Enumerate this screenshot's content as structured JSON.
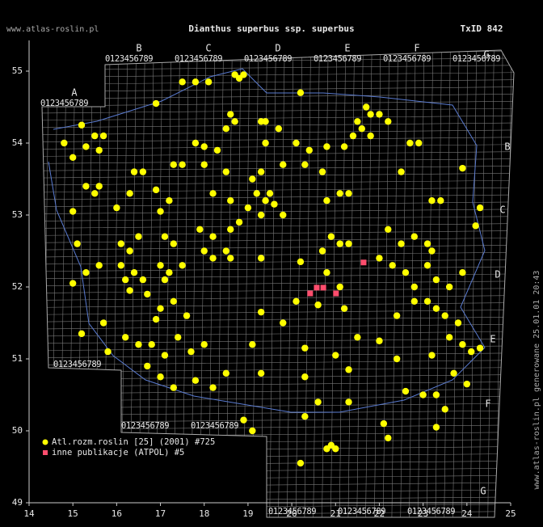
{
  "header": {
    "site": "www.atlas-roslin.pl",
    "title": "Dianthus superbus ssp. superbus",
    "taxon_id": "TxID 842"
  },
  "map": {
    "lonlim": [
      14,
      25
    ],
    "latlim": [
      49,
      55
    ],
    "lon_ticks": [
      14,
      15,
      16,
      17,
      18,
      19,
      20,
      21,
      22,
      23,
      24,
      25
    ],
    "lat_ticks": [
      49,
      50,
      51,
      52,
      53,
      54,
      55
    ],
    "atpol_top": [
      "A",
      "B",
      "C",
      "D",
      "E",
      "F",
      "G"
    ],
    "atpol_right": [
      "B",
      "C",
      "D",
      "E",
      "F",
      "G"
    ],
    "atpol_digits": "0123456789",
    "series": [
      {
        "name": "Atl.rozm.roslin [25] (2001) #725",
        "color": "#ffff00",
        "points": [
          [
            18.7,
            54.95
          ],
          [
            18.9,
            54.95
          ],
          [
            18.8,
            54.9
          ],
          [
            17.5,
            54.85
          ],
          [
            17.8,
            54.85
          ],
          [
            18.1,
            54.85
          ],
          [
            20.2,
            54.7
          ],
          [
            16.9,
            54.55
          ],
          [
            18.6,
            54.4
          ],
          [
            18.7,
            54.3
          ],
          [
            18.5,
            54.2
          ],
          [
            19.3,
            54.3
          ],
          [
            19.4,
            54.3
          ],
          [
            19.7,
            54.2
          ],
          [
            21.7,
            54.5
          ],
          [
            21.8,
            54.4
          ],
          [
            22.0,
            54.4
          ],
          [
            21.5,
            54.3
          ],
          [
            21.6,
            54.2
          ],
          [
            21.8,
            54.1
          ],
          [
            21.4,
            54.1
          ],
          [
            22.2,
            54.3
          ],
          [
            15.2,
            54.25
          ],
          [
            14.8,
            54.0
          ],
          [
            15.3,
            53.95
          ],
          [
            15.5,
            54.1
          ],
          [
            15.7,
            54.1
          ],
          [
            17.8,
            54.0
          ],
          [
            18.0,
            53.95
          ],
          [
            18.3,
            53.9
          ],
          [
            19.4,
            54.0
          ],
          [
            20.1,
            54.0
          ],
          [
            20.4,
            53.9
          ],
          [
            20.8,
            53.95
          ],
          [
            22.7,
            54.0
          ],
          [
            22.9,
            54.0
          ],
          [
            21.2,
            53.95
          ],
          [
            15.0,
            53.8
          ],
          [
            15.6,
            53.9
          ],
          [
            16.4,
            53.6
          ],
          [
            16.6,
            53.6
          ],
          [
            17.3,
            53.7
          ],
          [
            17.5,
            53.7
          ],
          [
            18.0,
            53.7
          ],
          [
            18.5,
            53.6
          ],
          [
            19.1,
            53.5
          ],
          [
            19.3,
            53.6
          ],
          [
            19.8,
            53.7
          ],
          [
            20.3,
            53.7
          ],
          [
            20.7,
            53.6
          ],
          [
            22.5,
            53.6
          ],
          [
            23.9,
            53.65
          ],
          [
            15.3,
            53.4
          ],
          [
            15.5,
            53.3
          ],
          [
            15.6,
            53.4
          ],
          [
            16.3,
            53.3
          ],
          [
            16.9,
            53.35
          ],
          [
            17.2,
            53.2
          ],
          [
            18.2,
            53.3
          ],
          [
            18.6,
            53.2
          ],
          [
            19.2,
            53.3
          ],
          [
            19.4,
            53.2
          ],
          [
            19.6,
            53.15
          ],
          [
            19.8,
            53.0
          ],
          [
            19.3,
            53.0
          ],
          [
            20.8,
            53.2
          ],
          [
            21.1,
            53.3
          ],
          [
            21.3,
            53.3
          ],
          [
            23.2,
            53.2
          ],
          [
            23.4,
            53.2
          ],
          [
            24.3,
            53.1
          ],
          [
            15.0,
            53.05
          ],
          [
            16.0,
            53.1
          ],
          [
            17.0,
            53.05
          ],
          [
            19.0,
            53.1
          ],
          [
            19.5,
            53.3
          ],
          [
            15.1,
            52.6
          ],
          [
            16.1,
            52.6
          ],
          [
            16.3,
            52.5
          ],
          [
            16.5,
            52.7
          ],
          [
            17.1,
            52.7
          ],
          [
            17.3,
            52.6
          ],
          [
            17.9,
            52.8
          ],
          [
            18.2,
            52.7
          ],
          [
            18.6,
            52.8
          ],
          [
            18.8,
            52.9
          ],
          [
            18.0,
            52.5
          ],
          [
            18.5,
            52.5
          ],
          [
            20.9,
            52.7
          ],
          [
            21.1,
            52.6
          ],
          [
            21.3,
            52.6
          ],
          [
            20.7,
            52.5
          ],
          [
            22.2,
            52.8
          ],
          [
            22.5,
            52.6
          ],
          [
            22.8,
            52.7
          ],
          [
            23.1,
            52.6
          ],
          [
            23.2,
            52.5
          ],
          [
            24.2,
            52.85
          ],
          [
            15.0,
            52.05
          ],
          [
            15.3,
            52.2
          ],
          [
            15.6,
            52.3
          ],
          [
            16.1,
            52.3
          ],
          [
            16.2,
            52.1
          ],
          [
            16.4,
            52.2
          ],
          [
            16.6,
            52.1
          ],
          [
            17.0,
            52.3
          ],
          [
            17.2,
            52.2
          ],
          [
            17.5,
            52.3
          ],
          [
            17.1,
            52.1
          ],
          [
            18.2,
            52.4
          ],
          [
            18.6,
            52.4
          ],
          [
            19.3,
            52.4
          ],
          [
            20.2,
            52.35
          ],
          [
            20.8,
            52.2
          ],
          [
            22.0,
            52.4
          ],
          [
            22.3,
            52.3
          ],
          [
            22.6,
            52.2
          ],
          [
            22.8,
            52.0
          ],
          [
            23.1,
            52.3
          ],
          [
            23.3,
            52.1
          ],
          [
            23.6,
            52.0
          ],
          [
            23.9,
            52.2
          ],
          [
            21.1,
            52.0
          ],
          [
            16.3,
            51.95
          ],
          [
            16.7,
            51.9
          ],
          [
            17.0,
            51.7
          ],
          [
            17.3,
            51.8
          ],
          [
            16.9,
            51.55
          ],
          [
            17.6,
            51.6
          ],
          [
            20.1,
            51.8
          ],
          [
            20.6,
            51.75
          ],
          [
            21.2,
            51.7
          ],
          [
            22.4,
            51.6
          ],
          [
            22.8,
            51.8
          ],
          [
            23.1,
            51.8
          ],
          [
            23.3,
            51.7
          ],
          [
            23.5,
            51.6
          ],
          [
            23.8,
            51.5
          ],
          [
            19.3,
            51.65
          ],
          [
            19.8,
            51.5
          ],
          [
            15.7,
            51.5
          ],
          [
            15.2,
            51.35
          ],
          [
            15.8,
            51.1
          ],
          [
            16.2,
            51.3
          ],
          [
            16.5,
            51.2
          ],
          [
            16.8,
            51.2
          ],
          [
            17.1,
            51.05
          ],
          [
            17.4,
            51.3
          ],
          [
            17.7,
            51.1
          ],
          [
            18.0,
            51.2
          ],
          [
            19.1,
            51.2
          ],
          [
            20.3,
            51.15
          ],
          [
            21.0,
            51.05
          ],
          [
            21.5,
            51.3
          ],
          [
            22.0,
            51.25
          ],
          [
            23.2,
            51.05
          ],
          [
            23.6,
            51.3
          ],
          [
            23.9,
            51.2
          ],
          [
            24.1,
            51.1
          ],
          [
            24.3,
            51.15
          ],
          [
            22.4,
            51.0
          ],
          [
            16.7,
            50.9
          ],
          [
            17.0,
            50.75
          ],
          [
            17.3,
            50.6
          ],
          [
            17.8,
            50.7
          ],
          [
            18.2,
            50.6
          ],
          [
            18.5,
            50.8
          ],
          [
            19.3,
            50.8
          ],
          [
            20.3,
            50.75
          ],
          [
            21.3,
            50.85
          ],
          [
            22.6,
            50.55
          ],
          [
            23.0,
            50.5
          ],
          [
            23.3,
            50.5
          ],
          [
            23.7,
            50.8
          ],
          [
            24.0,
            50.65
          ],
          [
            18.9,
            50.15
          ],
          [
            19.1,
            50.0
          ],
          [
            20.3,
            50.2
          ],
          [
            20.6,
            50.4
          ],
          [
            21.3,
            50.4
          ],
          [
            22.1,
            50.1
          ],
          [
            23.3,
            50.05
          ],
          [
            23.5,
            50.3
          ],
          [
            22.2,
            49.9
          ],
          [
            20.8,
            49.75
          ],
          [
            21.0,
            49.75
          ],
          [
            20.9,
            49.8
          ],
          [
            20.2,
            49.55
          ]
        ]
      },
      {
        "name": "inne publikacje (ATPOL) #5",
        "color": "#ff4d6d",
        "points": [
          [
            21.64,
            52.34
          ],
          [
            20.42,
            51.91
          ],
          [
            20.57,
            51.99
          ],
          [
            20.72,
            51.99
          ],
          [
            21.01,
            51.91
          ]
        ]
      }
    ]
  },
  "footer": "www.atlas-roslin.pl generowane 25.01.01 20:43"
}
